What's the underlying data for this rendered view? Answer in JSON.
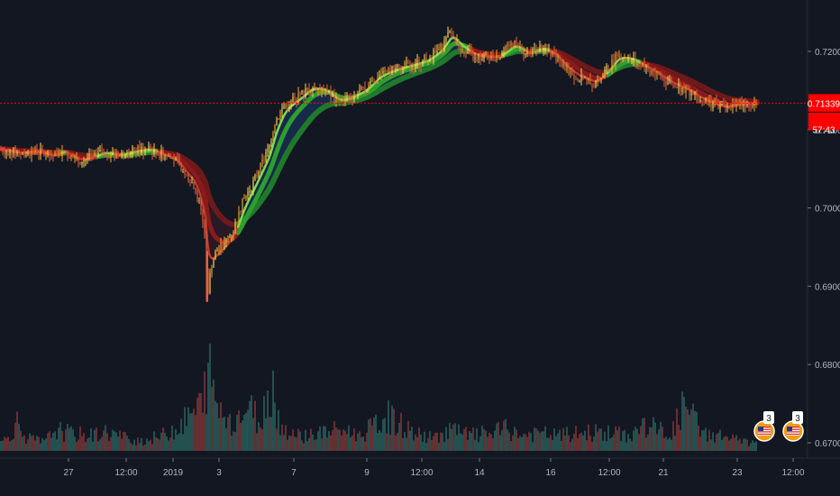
{
  "chart_data": {
    "type": "candlestick",
    "title": "",
    "y_ticks": [
      "0.72000",
      "0.71000",
      "0.70000",
      "0.69000",
      "0.68000",
      "0.67000"
    ],
    "x_ticks": [
      "27",
      "12:00",
      "2019",
      "3",
      "7",
      "9",
      "12:00",
      "14",
      "16",
      "12:00",
      "21",
      "23",
      "12:00"
    ],
    "price_line": {
      "value": 0.71339,
      "label": "0.71339",
      "countdown": "57:43",
      "color": "#ff0000"
    },
    "colors": {
      "background": "#131722",
      "bull": "#26a69a",
      "bear": "#ef5350",
      "ribbon_bull": "#2e9e2e",
      "ribbon_bear": "#8b1a1a",
      "highlight": "#ffd54f"
    },
    "price_path": [
      [
        0,
        0.7075
      ],
      [
        20,
        0.707
      ],
      [
        40,
        0.7072
      ],
      [
        60,
        0.7066
      ],
      [
        70,
        0.7074
      ],
      [
        85,
        0.706
      ],
      [
        100,
        0.7064
      ],
      [
        115,
        0.7072
      ],
      [
        130,
        0.7066
      ],
      [
        150,
        0.7073
      ],
      [
        165,
        0.7075
      ],
      [
        180,
        0.7068
      ],
      [
        195,
        0.706
      ],
      [
        205,
        0.7042
      ],
      [
        215,
        0.703
      ],
      [
        222,
        0.7002
      ],
      [
        228,
        0.696
      ],
      [
        230,
        0.688
      ],
      [
        234,
        0.6925
      ],
      [
        240,
        0.6945
      ],
      [
        250,
        0.6955
      ],
      [
        260,
        0.6975
      ],
      [
        270,
        0.701
      ],
      [
        280,
        0.703
      ],
      [
        290,
        0.7055
      ],
      [
        298,
        0.7075
      ],
      [
        305,
        0.711
      ],
      [
        315,
        0.713
      ],
      [
        330,
        0.714
      ],
      [
        345,
        0.7155
      ],
      [
        360,
        0.715
      ],
      [
        375,
        0.7135
      ],
      [
        390,
        0.7142
      ],
      [
        405,
        0.7152
      ],
      [
        420,
        0.717
      ],
      [
        440,
        0.7178
      ],
      [
        460,
        0.7184
      ],
      [
        475,
        0.719
      ],
      [
        490,
        0.7205
      ],
      [
        500,
        0.7225
      ],
      [
        510,
        0.7205
      ],
      [
        525,
        0.7195
      ],
      [
        540,
        0.7192
      ],
      [
        555,
        0.7195
      ],
      [
        570,
        0.721
      ],
      [
        585,
        0.7195
      ],
      [
        600,
        0.7205
      ],
      [
        615,
        0.7195
      ],
      [
        630,
        0.7175
      ],
      [
        645,
        0.7165
      ],
      [
        660,
        0.716
      ],
      [
        672,
        0.7175
      ],
      [
        685,
        0.7195
      ],
      [
        700,
        0.719
      ],
      [
        715,
        0.718
      ],
      [
        730,
        0.717
      ],
      [
        745,
        0.7158
      ],
      [
        760,
        0.7152
      ],
      [
        775,
        0.714
      ],
      [
        790,
        0.7132
      ],
      [
        805,
        0.7128
      ],
      [
        820,
        0.7135
      ],
      [
        840,
        0.7133
      ]
    ],
    "volume_path": [
      [
        0,
        0.08
      ],
      [
        12,
        0.2
      ],
      [
        18,
        0.35
      ],
      [
        30,
        0.15
      ],
      [
        50,
        0.1
      ],
      [
        60,
        0.25
      ],
      [
        80,
        0.2
      ],
      [
        100,
        0.18
      ],
      [
        120,
        0.22
      ],
      [
        140,
        0.15
      ],
      [
        160,
        0.12
      ],
      [
        180,
        0.18
      ],
      [
        200,
        0.3
      ],
      [
        215,
        0.45
      ],
      [
        225,
        0.55
      ],
      [
        231,
        1.0
      ],
      [
        236,
        0.7
      ],
      [
        245,
        0.45
      ],
      [
        260,
        0.35
      ],
      [
        275,
        0.5
      ],
      [
        290,
        0.35
      ],
      [
        302,
        0.85
      ],
      [
        310,
        0.3
      ],
      [
        330,
        0.18
      ],
      [
        350,
        0.2
      ],
      [
        380,
        0.25
      ],
      [
        400,
        0.18
      ],
      [
        430,
        0.4
      ],
      [
        460,
        0.2
      ],
      [
        480,
        0.15
      ],
      [
        500,
        0.25
      ],
      [
        520,
        0.18
      ],
      [
        540,
        0.2
      ],
      [
        560,
        0.25
      ],
      [
        580,
        0.18
      ],
      [
        600,
        0.2
      ],
      [
        620,
        0.18
      ],
      [
        640,
        0.2
      ],
      [
        660,
        0.22
      ],
      [
        680,
        0.2
      ],
      [
        700,
        0.18
      ],
      [
        715,
        0.3
      ],
      [
        730,
        0.25
      ],
      [
        745,
        0.2
      ],
      [
        760,
        0.55
      ],
      [
        780,
        0.2
      ],
      [
        800,
        0.18
      ],
      [
        820,
        0.12
      ],
      [
        838,
        0.08
      ]
    ],
    "y_range": [
      0.67,
      0.7235
    ],
    "grid": false,
    "legend": "none",
    "event_markers": [
      {
        "icon": "us-flag-event-icon",
        "label": "3"
      },
      {
        "icon": "us-flag-event-icon",
        "label": "3"
      }
    ]
  }
}
